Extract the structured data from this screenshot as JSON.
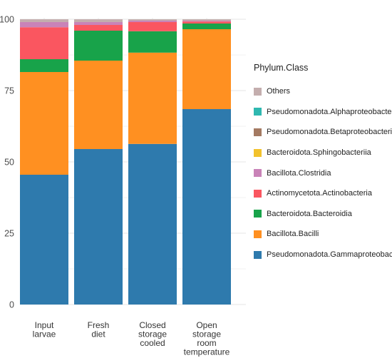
{
  "chart_data": {
    "type": "bar",
    "stacked": true,
    "title": "",
    "xlabel": "",
    "ylabel": "",
    "ylim": [
      0,
      100
    ],
    "yticks": [
      0,
      25,
      50,
      75,
      100
    ],
    "grid": true,
    "legend_position": "right",
    "legend_title": "Phylum.Class",
    "categories": [
      [
        "Input",
        "larvae"
      ],
      [
        "Fresh",
        "diet"
      ],
      [
        "Closed",
        "storage",
        "cooled"
      ],
      [
        "Open",
        "storage",
        "room",
        "temperature"
      ]
    ],
    "series": [
      {
        "name": "Pseudomonadota.Gammaproteobacteria",
        "color": "#2e7aad",
        "values": [
          45.5,
          54.5,
          56.3,
          68.5
        ]
      },
      {
        "name": "Bacillota.Bacilli",
        "color": "#ff9021",
        "values": [
          36.0,
          31.0,
          32.0,
          28.0
        ]
      },
      {
        "name": "Bacteroidota.Bacteroidia",
        "color": "#18a34a",
        "values": [
          4.5,
          10.5,
          7.5,
          2.0
        ]
      },
      {
        "name": "Actinomycetota.Actinobacteria",
        "color": "#fa5660",
        "values": [
          11.2,
          2.0,
          3.2,
          0.7
        ]
      },
      {
        "name": "Bacillota.Clostridia",
        "color": "#c983b8",
        "values": [
          1.8,
          1.0,
          0.5,
          0.3
        ]
      },
      {
        "name": "Bacteroidota.Sphingobacteriia",
        "color": "#f2c22d",
        "values": [
          0.0,
          0.0,
          0.0,
          0.0
        ]
      },
      {
        "name": "Pseudomonadota.Betaproteobacteria",
        "color": "#a47a62",
        "values": [
          0.0,
          0.0,
          0.0,
          0.0
        ]
      },
      {
        "name": "Pseudomonadota.Alphaproteobacteria",
        "color": "#2fb8b0",
        "values": [
          0.0,
          0.0,
          0.0,
          0.0
        ]
      },
      {
        "name": "Others",
        "color": "#c4aeae",
        "values": [
          1.0,
          1.0,
          0.5,
          0.5
        ]
      }
    ],
    "legend_order": [
      "Others",
      "Pseudomonadota.Alphaproteobacteria",
      "Pseudomonadota.Betaproteobacteria",
      "Bacteroidota.Sphingobacteriia",
      "Bacillota.Clostridia",
      "Actinomycetota.Actinobacteria",
      "Bacteroidota.Bacteroidia",
      "Bacillota.Bacilli",
      "Pseudomonadota.Gammaproteobacteria"
    ]
  }
}
